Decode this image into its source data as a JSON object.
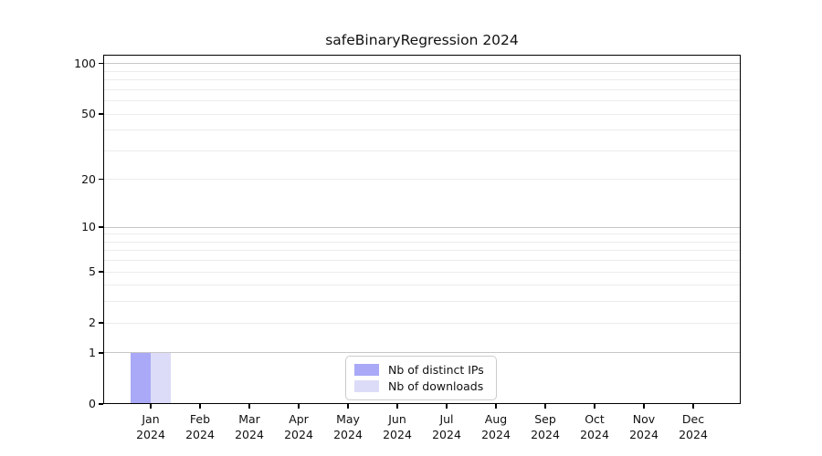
{
  "figure": {
    "background": "#ffffff"
  },
  "chart_data": {
    "type": "bar",
    "title": "safeBinaryRegression 2024",
    "categories": [
      "Jan 2024",
      "Feb 2024",
      "Mar 2024",
      "Apr 2024",
      "May 2024",
      "Jun 2024",
      "Jul 2024",
      "Aug 2024",
      "Sep 2024",
      "Oct 2024",
      "Nov 2024",
      "Dec 2024"
    ],
    "series": [
      {
        "name": "Nb of distinct IPs",
        "color": "#a9a9f7",
        "values": [
          1,
          0,
          0,
          0,
          0,
          0,
          0,
          0,
          0,
          0,
          0,
          0
        ]
      },
      {
        "name": "Nb of downloads",
        "color": "#dcdcf9",
        "values": [
          1,
          0,
          0,
          0,
          0,
          0,
          0,
          0,
          0,
          0,
          0,
          0
        ]
      }
    ],
    "xlabel": "",
    "ylabel": "",
    "y_axis": {
      "scale": "log1p",
      "ylim": [
        0,
        113
      ],
      "tick_labels": [
        "0",
        "1",
        "2",
        "5",
        "10",
        "20",
        "50",
        "100"
      ],
      "tick_values": [
        0,
        1,
        2,
        5,
        10,
        20,
        50,
        100
      ],
      "major_gridlines": [
        1,
        10,
        100
      ],
      "minor_gridlines": [
        2,
        3,
        4,
        5,
        6,
        7,
        8,
        9,
        20,
        30,
        40,
        50,
        60,
        70,
        80,
        90
      ]
    },
    "grid": "horizontal",
    "legend_position": "lower center",
    "colors": {
      "major_grid": "#c6c6c6",
      "minor_grid": "#ececec",
      "axis": "#000000",
      "legend_border": "#cccccc"
    }
  }
}
